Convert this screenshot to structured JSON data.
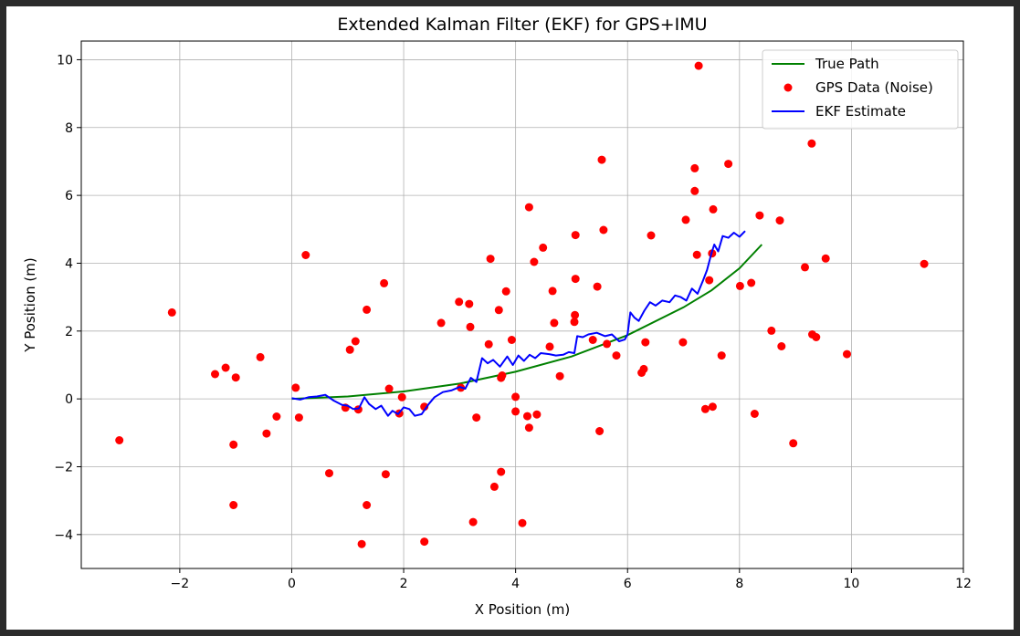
{
  "chart_data": {
    "type": "scatter",
    "title": "Extended Kalman Filter (EKF) for GPS+IMU",
    "xlabel": "X Position (m)",
    "ylabel": "Y Position (m)",
    "xlim": [
      -3.76,
      12.0
    ],
    "ylim": [
      -5.0,
      10.55
    ],
    "xticks": [
      -2,
      0,
      2,
      4,
      6,
      8,
      10,
      12
    ],
    "yticks": [
      -4,
      -2,
      0,
      2,
      4,
      6,
      8,
      10
    ],
    "xtick_labels": [
      "−2",
      "0",
      "2",
      "4",
      "6",
      "8",
      "10",
      "12"
    ],
    "ytick_labels": [
      "−4",
      "−2",
      "0",
      "2",
      "4",
      "6",
      "8",
      "10"
    ],
    "grid": true,
    "legend_position": "top-right",
    "series": [
      {
        "name": "True Path",
        "kind": "line",
        "color": "#008000",
        "x": [
          0,
          1,
          2,
          3,
          4,
          5,
          6,
          7,
          7.5,
          8,
          8.4
        ],
        "y": [
          0,
          0.07,
          0.22,
          0.45,
          0.8,
          1.25,
          1.88,
          2.7,
          3.2,
          3.85,
          4.55
        ]
      },
      {
        "name": "GPS Data (Noise)",
        "kind": "scatter",
        "color": "#ff0000",
        "x": [
          -3.08,
          -2.14,
          -1.37,
          -1.18,
          -1.0,
          -1.04,
          -1.04,
          -0.56,
          -0.45,
          -0.27,
          0.07,
          0.13,
          0.25,
          0.67,
          0.96,
          1.04,
          1.14,
          1.19,
          1.25,
          1.34,
          1.34,
          1.65,
          1.68,
          1.74,
          1.92,
          1.97,
          2.37,
          2.37,
          2.67,
          2.99,
          3.02,
          3.17,
          3.19,
          3.24,
          3.3,
          3.52,
          3.55,
          3.62,
          3.7,
          3.74,
          3.74,
          3.76,
          3.83,
          3.93,
          4.0,
          4.0,
          4.12,
          4.21,
          4.24,
          4.24,
          4.33,
          4.38,
          4.49,
          4.61,
          4.66,
          4.69,
          4.79,
          5.05,
          5.06,
          5.07,
          5.07,
          5.38,
          5.46,
          5.5,
          5.54,
          5.57,
          5.63,
          5.8,
          6.25,
          6.29,
          6.32,
          6.42,
          6.99,
          7.04,
          7.2,
          7.2,
          7.24,
          7.27,
          7.39,
          7.46,
          7.51,
          7.52,
          7.53,
          7.68,
          7.8,
          8.01,
          8.21,
          8.27,
          8.36,
          8.57,
          8.72,
          8.75,
          8.96,
          9.17,
          9.29,
          9.3,
          9.37,
          9.54,
          9.92,
          11.3
        ],
        "y": [
          -1.22,
          2.55,
          0.73,
          0.92,
          0.63,
          -1.35,
          -3.13,
          1.23,
          -1.02,
          -0.52,
          0.33,
          -0.55,
          4.24,
          -2.19,
          -0.26,
          1.45,
          1.7,
          -0.31,
          -4.28,
          2.63,
          -3.13,
          3.41,
          -2.22,
          0.3,
          -0.43,
          0.05,
          -0.23,
          -4.21,
          2.24,
          2.86,
          0.33,
          2.8,
          2.12,
          -3.63,
          -0.55,
          1.61,
          4.13,
          -2.59,
          2.62,
          -2.15,
          0.62,
          0.69,
          3.17,
          1.74,
          0.06,
          -0.37,
          -3.66,
          -0.51,
          -0.85,
          5.65,
          4.04,
          -0.46,
          4.46,
          1.54,
          3.18,
          2.24,
          0.67,
          2.27,
          2.47,
          3.54,
          4.83,
          1.74,
          3.31,
          -0.95,
          7.05,
          4.98,
          1.62,
          1.28,
          0.77,
          0.88,
          1.67,
          4.82,
          1.67,
          5.28,
          6.8,
          6.13,
          4.25,
          9.82,
          -0.3,
          3.5,
          4.29,
          -0.23,
          5.59,
          1.28,
          6.93,
          3.33,
          3.42,
          -0.44,
          5.41,
          2.01,
          5.26,
          1.55,
          -1.31,
          3.88,
          7.53,
          1.9,
          1.82,
          4.14,
          1.32,
          3.98
        ]
      },
      {
        "name": "EKF Estimate",
        "kind": "line",
        "color": "#0000ff",
        "x": [
          0,
          0.15,
          0.3,
          0.45,
          0.6,
          0.75,
          0.9,
          1.0,
          1.1,
          1.2,
          1.3,
          1.38,
          1.5,
          1.6,
          1.72,
          1.8,
          1.9,
          2.0,
          2.1,
          2.2,
          2.32,
          2.45,
          2.55,
          2.7,
          2.85,
          3.0,
          3.1,
          3.2,
          3.3,
          3.4,
          3.5,
          3.6,
          3.72,
          3.85,
          3.95,
          4.05,
          4.15,
          4.25,
          4.35,
          4.45,
          4.6,
          4.72,
          4.85,
          4.95,
          5.05,
          5.1,
          5.2,
          5.3,
          5.45,
          5.6,
          5.72,
          5.85,
          5.95,
          6.0,
          6.05,
          6.12,
          6.2,
          6.3,
          6.4,
          6.5,
          6.62,
          6.75,
          6.85,
          6.95,
          7.05,
          7.15,
          7.25,
          7.35,
          7.42,
          7.5,
          7.55,
          7.62,
          7.7,
          7.8,
          7.9,
          8.0,
          8.1
        ],
        "y": [
          0.02,
          -0.02,
          0.05,
          0.07,
          0.12,
          -0.05,
          -0.18,
          -0.2,
          -0.3,
          -0.28,
          0.05,
          -0.15,
          -0.3,
          -0.2,
          -0.5,
          -0.35,
          -0.45,
          -0.25,
          -0.3,
          -0.5,
          -0.45,
          -0.15,
          0.05,
          0.2,
          0.25,
          0.35,
          0.3,
          0.62,
          0.5,
          1.2,
          1.05,
          1.15,
          0.95,
          1.25,
          1.0,
          1.28,
          1.12,
          1.3,
          1.2,
          1.35,
          1.32,
          1.28,
          1.3,
          1.38,
          1.35,
          1.85,
          1.82,
          1.9,
          1.95,
          1.85,
          1.9,
          1.7,
          1.75,
          1.9,
          2.55,
          2.4,
          2.3,
          2.6,
          2.85,
          2.75,
          2.9,
          2.85,
          3.05,
          3.0,
          2.9,
          3.25,
          3.1,
          3.5,
          3.8,
          4.3,
          4.55,
          4.35,
          4.8,
          4.75,
          4.9,
          4.78,
          4.95
        ]
      }
    ]
  }
}
